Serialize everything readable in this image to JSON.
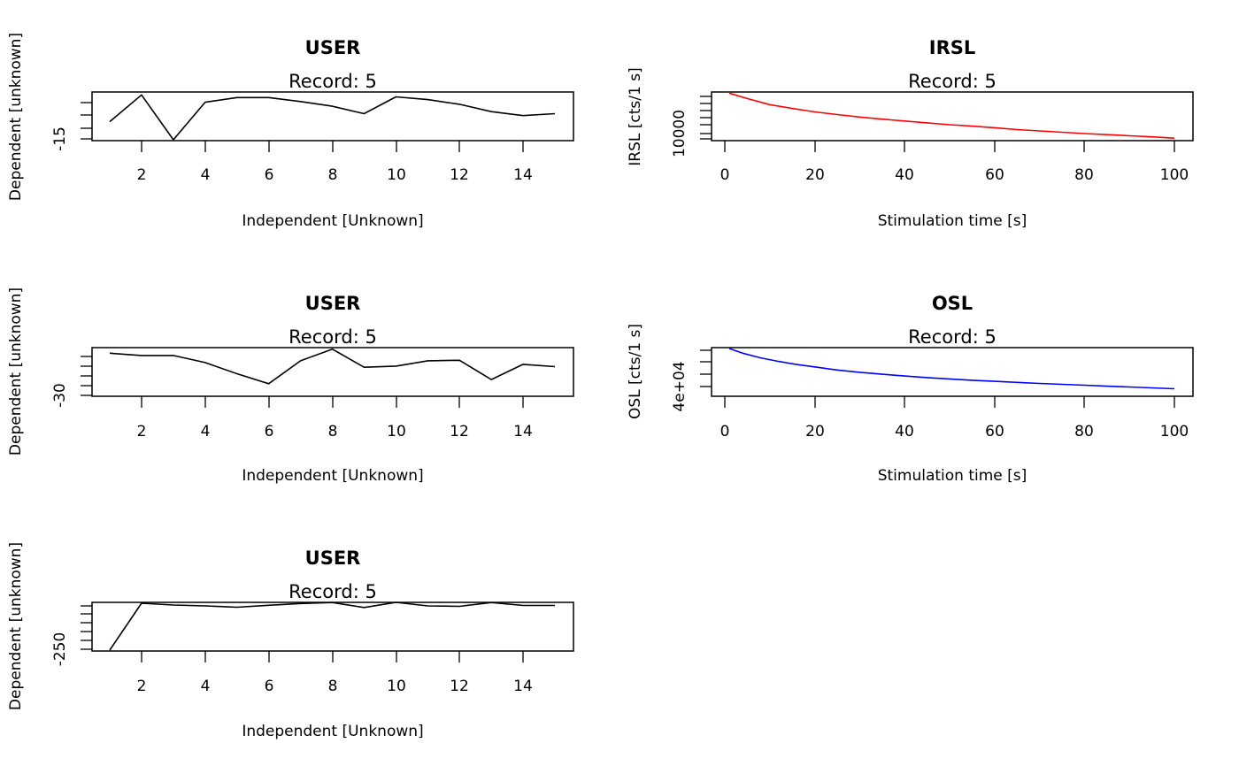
{
  "chart_data": [
    {
      "type": "line",
      "title": "USER",
      "subtitle": "Record: 5",
      "xlabel": "Independent [Unknown]",
      "ylabel": "Dependent [unknown]",
      "xlim": [
        1,
        15
      ],
      "ylim": [
        -15,
        -8
      ],
      "x_ticks": [
        "2",
        "4",
        "6",
        "8",
        "10",
        "12",
        "14"
      ],
      "y_ticks": [
        "-15"
      ],
      "color": "#000000",
      "x": [
        1,
        2,
        3,
        4,
        5,
        6,
        7,
        8,
        9,
        10,
        11,
        12,
        13,
        14,
        15
      ],
      "y": [
        -12.3,
        -8.3,
        -15.0,
        -9.4,
        -8.7,
        -8.7,
        -9.3,
        -10.0,
        -11.1,
        -8.6,
        -9.0,
        -9.7,
        -10.8,
        -11.4,
        -11.1
      ]
    },
    {
      "type": "line",
      "title": "IRSL",
      "subtitle": "Record: 5",
      "xlabel": "Stimulation time [s]",
      "ylabel": "IRSL [cts/1 s]",
      "xlim": [
        1,
        100
      ],
      "ylim": [
        9800,
        11550
      ],
      "x_ticks": [
        "0",
        "20",
        "40",
        "60",
        "80",
        "100"
      ],
      "y_ticks": [
        "10000"
      ],
      "color": "#ff0000",
      "x": [
        1,
        5,
        10,
        15,
        20,
        25,
        30,
        35,
        40,
        45,
        50,
        55,
        60,
        65,
        70,
        75,
        80,
        85,
        90,
        95,
        100
      ],
      "y": [
        11540,
        11340,
        11110,
        10970,
        10840,
        10740,
        10650,
        10570,
        10500,
        10430,
        10360,
        10310,
        10250,
        10180,
        10130,
        10080,
        10030,
        9990,
        9950,
        9910,
        9860
      ]
    },
    {
      "type": "line",
      "title": "USER",
      "subtitle": "Record: 5",
      "xlabel": "Independent [Unknown]",
      "ylabel": "Dependent [unknown]",
      "xlim": [
        1,
        15
      ],
      "ylim": [
        -30,
        -22
      ],
      "x_ticks": [
        "2",
        "4",
        "6",
        "8",
        "10",
        "12",
        "14"
      ],
      "y_ticks": [
        "-30"
      ],
      "color": "#000000",
      "x": [
        1,
        2,
        3,
        4,
        5,
        6,
        7,
        8,
        9,
        10,
        11,
        12,
        13,
        14,
        15
      ],
      "y": [
        -22.8,
        -23.2,
        -23.2,
        -24.4,
        -26.3,
        -28.0,
        -24.1,
        -22.1,
        -25.2,
        -25.0,
        -24.1,
        -24.0,
        -27.3,
        -24.7,
        -25.1
      ]
    },
    {
      "type": "line",
      "title": "OSL",
      "subtitle": "Record: 5",
      "xlabel": "Stimulation time [s]",
      "ylabel": "OSL [cts/1 s]",
      "xlim": [
        1,
        100
      ],
      "ylim": [
        10000,
        70000
      ],
      "x_ticks": [
        "0",
        "20",
        "40",
        "60",
        "80",
        "100"
      ],
      "y_ticks": [
        "4e+04"
      ],
      "color": "#0000ff",
      "x": [
        1,
        4,
        8,
        12,
        16,
        20,
        25,
        30,
        35,
        40,
        45,
        50,
        55,
        60,
        65,
        70,
        75,
        80,
        85,
        90,
        95,
        100
      ],
      "y": [
        70000,
        64000,
        58000,
        53500,
        49500,
        46500,
        42500,
        39500,
        37000,
        34800,
        32800,
        31000,
        29400,
        28000,
        26600,
        25300,
        24100,
        23000,
        21800,
        20700,
        19600,
        18500
      ]
    },
    {
      "type": "line",
      "title": "USER",
      "subtitle": "Record: 5",
      "xlabel": "Independent [Unknown]",
      "ylabel": "Dependent [unknown]",
      "xlim": [
        1,
        15
      ],
      "ylim": [
        -250,
        -40
      ],
      "x_ticks": [
        "2",
        "4",
        "6",
        "8",
        "10",
        "12",
        "14"
      ],
      "y_ticks": [
        "-250"
      ],
      "color": "#000000",
      "x": [
        1,
        2,
        3,
        4,
        5,
        6,
        7,
        8,
        9,
        10,
        11,
        12,
        13,
        14,
        15
      ],
      "y": [
        -250,
        -40,
        -48,
        -52,
        -58,
        -49,
        -41,
        -37,
        -59,
        -36,
        -52,
        -54,
        -37,
        -50,
        -50
      ]
    }
  ]
}
